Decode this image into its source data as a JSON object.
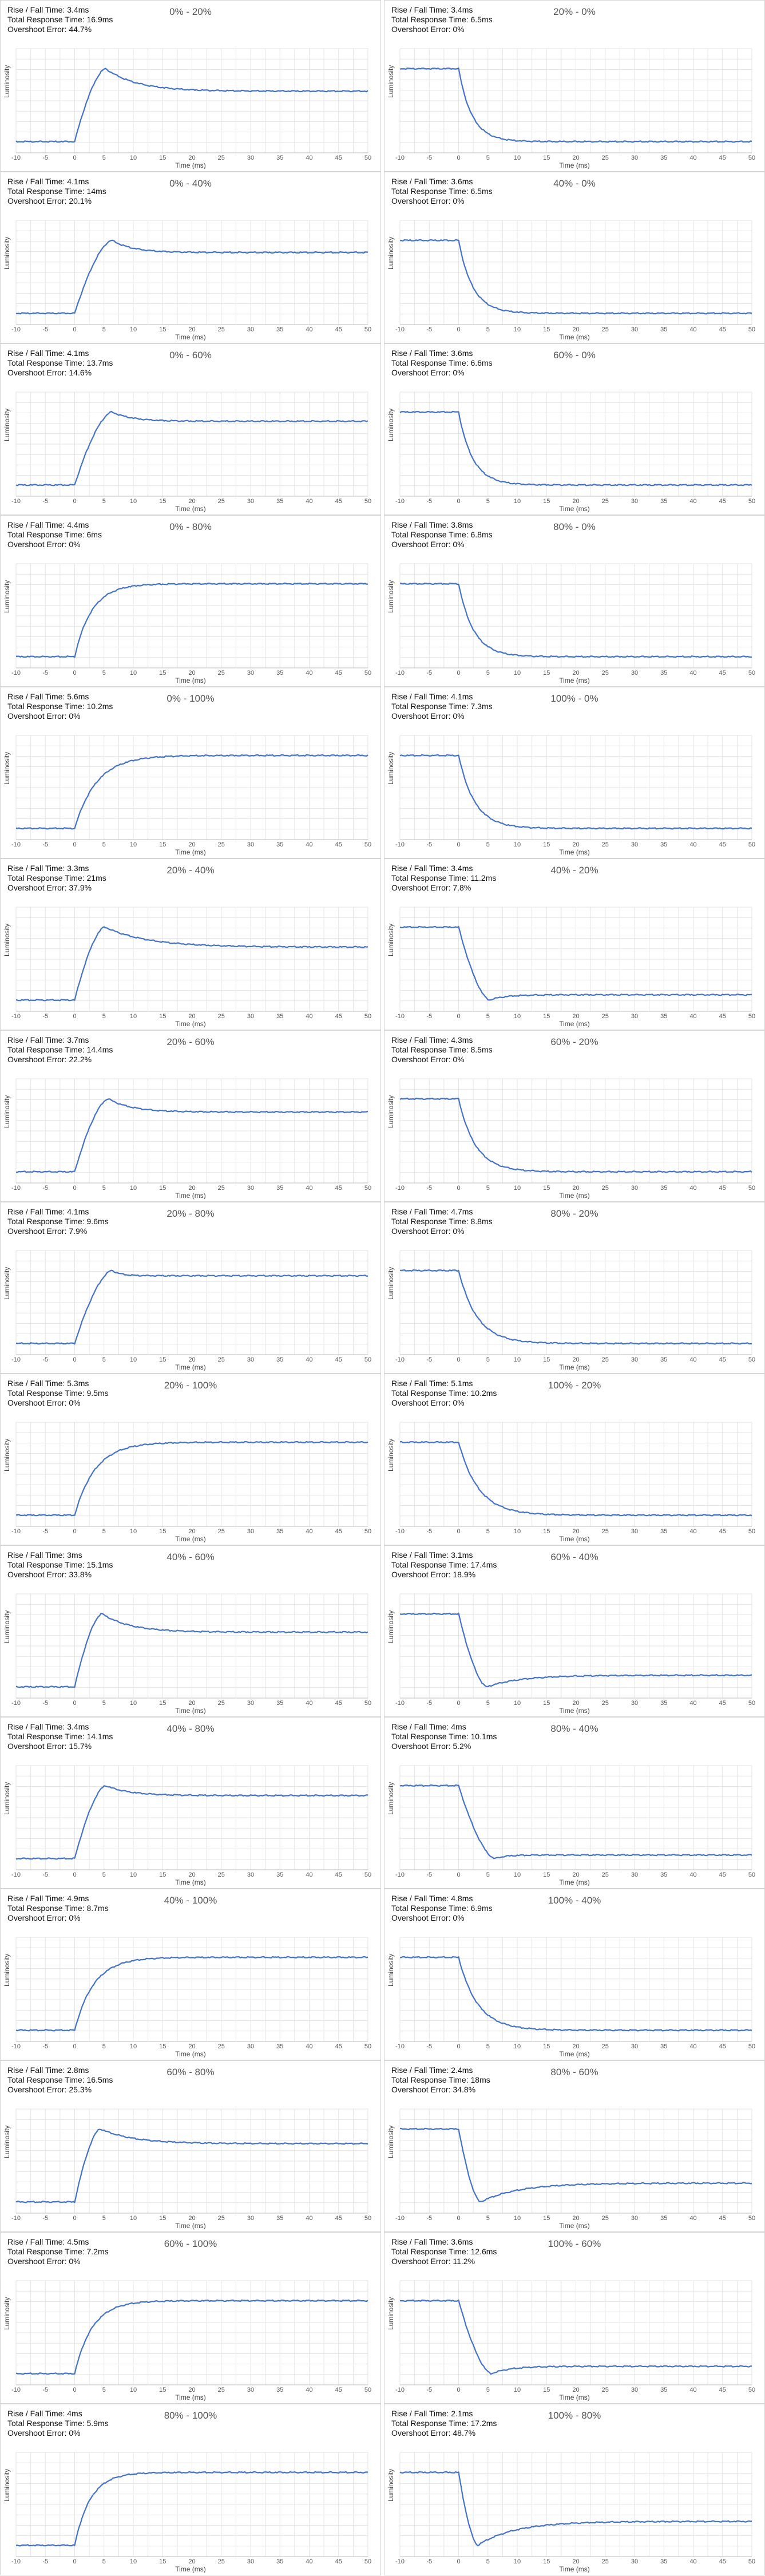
{
  "chart_data": [
    {
      "type": "line",
      "title": "0% - 20%",
      "from": 0,
      "to": 20,
      "rise_fall": "Rise / Fall Time: 3.4ms",
      "total_response": "Total Response Time: 16.9ms",
      "overshoot": "Overshoot Error: 44.7%",
      "overshoot_pct": 44.7,
      "rise_ms": 3.4,
      "settle_ms": 16.9,
      "xlabel": "Time (ms)",
      "ylabel": "Luminosity",
      "xlim": [
        -10,
        50
      ],
      "xticks": [
        -10,
        -5,
        0,
        5,
        10,
        15,
        20,
        25,
        30,
        35,
        40,
        45,
        50
      ]
    },
    {
      "type": "line",
      "title": "20% - 0%",
      "from": 20,
      "to": 0,
      "rise_fall": "Rise / Fall Time: 3.4ms",
      "total_response": "Total Response Time: 6.5ms",
      "overshoot": "Overshoot Error: 0%",
      "overshoot_pct": 0,
      "rise_ms": 3.4,
      "settle_ms": 6.5,
      "xlabel": "Time (ms)",
      "ylabel": "Luminosity",
      "xlim": [
        -10,
        50
      ],
      "xticks": [
        -10,
        -5,
        0,
        5,
        10,
        15,
        20,
        25,
        30,
        35,
        40,
        45,
        50
      ]
    },
    {
      "type": "line",
      "title": "0% - 40%",
      "from": 0,
      "to": 40,
      "rise_fall": "Rise / Fall Time: 4.1ms",
      "total_response": "Total Response Time: 14ms",
      "overshoot": "Overshoot Error: 20.1%",
      "overshoot_pct": 20.1,
      "rise_ms": 4.1,
      "settle_ms": 14,
      "xlabel": "Time (ms)",
      "ylabel": "Luminosity",
      "xlim": [
        -10,
        50
      ],
      "xticks": [
        -10,
        -5,
        0,
        5,
        10,
        15,
        20,
        25,
        30,
        35,
        40,
        45,
        50
      ]
    },
    {
      "type": "line",
      "title": "40% - 0%",
      "from": 40,
      "to": 0,
      "rise_fall": "Rise / Fall Time: 3.6ms",
      "total_response": "Total Response Time: 6.5ms",
      "overshoot": "Overshoot Error: 0%",
      "overshoot_pct": 0,
      "rise_ms": 3.6,
      "settle_ms": 6.5,
      "xlabel": "Time (ms)",
      "ylabel": "Luminosity",
      "xlim": [
        -10,
        50
      ],
      "xticks": [
        -10,
        -5,
        0,
        5,
        10,
        15,
        20,
        25,
        30,
        35,
        40,
        45,
        50
      ]
    },
    {
      "type": "line",
      "title": "0% - 60%",
      "from": 0,
      "to": 60,
      "rise_fall": "Rise / Fall Time: 4.1ms",
      "total_response": "Total Response Time: 13.7ms",
      "overshoot": "Overshoot Error: 14.6%",
      "overshoot_pct": 14.6,
      "rise_ms": 4.1,
      "settle_ms": 13.7,
      "xlabel": "Time (ms)",
      "ylabel": "Luminosity",
      "xlim": [
        -10,
        50
      ],
      "xticks": [
        -10,
        -5,
        0,
        5,
        10,
        15,
        20,
        25,
        30,
        35,
        40,
        45,
        50
      ]
    },
    {
      "type": "line",
      "title": "60% - 0%",
      "from": 60,
      "to": 0,
      "rise_fall": "Rise / Fall Time: 3.6ms",
      "total_response": "Total Response Time: 6.6ms",
      "overshoot": "Overshoot Error: 0%",
      "overshoot_pct": 0,
      "rise_ms": 3.6,
      "settle_ms": 6.6,
      "xlabel": "Time (ms)",
      "ylabel": "Luminosity",
      "xlim": [
        -10,
        50
      ],
      "xticks": [
        -10,
        -5,
        0,
        5,
        10,
        15,
        20,
        25,
        30,
        35,
        40,
        45,
        50
      ]
    },
    {
      "type": "line",
      "title": "0% - 80%",
      "from": 0,
      "to": 80,
      "rise_fall": "Rise / Fall Time: 4.4ms",
      "total_response": "Total Response Time: 6ms",
      "overshoot": "Overshoot Error: 0%",
      "overshoot_pct": 0,
      "rise_ms": 4.4,
      "settle_ms": 6,
      "xlabel": "Time (ms)",
      "ylabel": "Luminosity",
      "xlim": [
        -10,
        50
      ],
      "xticks": [
        -10,
        -5,
        0,
        5,
        10,
        15,
        20,
        25,
        30,
        35,
        40,
        45,
        50
      ]
    },
    {
      "type": "line",
      "title": "80% - 0%",
      "from": 80,
      "to": 0,
      "rise_fall": "Rise / Fall Time: 3.8ms",
      "total_response": "Total Response Time: 6.8ms",
      "overshoot": "Overshoot Error: 0%",
      "overshoot_pct": 0,
      "rise_ms": 3.8,
      "settle_ms": 6.8,
      "xlabel": "Time (ms)",
      "ylabel": "Luminosity",
      "xlim": [
        -10,
        50
      ],
      "xticks": [
        -10,
        -5,
        0,
        5,
        10,
        15,
        20,
        25,
        30,
        35,
        40,
        45,
        50
      ]
    },
    {
      "type": "line",
      "title": "0% - 100%",
      "from": 0,
      "to": 100,
      "rise_fall": "Rise / Fall Time: 5.6ms",
      "total_response": "Total Response Time: 10.2ms",
      "overshoot": "Overshoot Error: 0%",
      "overshoot_pct": 0,
      "rise_ms": 5.6,
      "settle_ms": 10.2,
      "xlabel": "Time (ms)",
      "ylabel": "Luminosity",
      "xlim": [
        -10,
        50
      ],
      "xticks": [
        -10,
        -5,
        0,
        5,
        10,
        15,
        20,
        25,
        30,
        35,
        40,
        45,
        50
      ]
    },
    {
      "type": "line",
      "title": "100% - 0%",
      "from": 100,
      "to": 0,
      "rise_fall": "Rise / Fall Time: 4.1ms",
      "total_response": "Total Response Time: 7.3ms",
      "overshoot": "Overshoot Error: 0%",
      "overshoot_pct": 0,
      "rise_ms": 4.1,
      "settle_ms": 7.3,
      "xlabel": "Time (ms)",
      "ylabel": "Luminosity",
      "xlim": [
        -10,
        50
      ],
      "xticks": [
        -10,
        -5,
        0,
        5,
        10,
        15,
        20,
        25,
        30,
        35,
        40,
        45,
        50
      ]
    },
    {
      "type": "line",
      "title": "20% - 40%",
      "from": 20,
      "to": 40,
      "rise_fall": "Rise / Fall Time: 3.3ms",
      "total_response": "Total Response Time: 21ms",
      "overshoot": "Overshoot Error: 37.9%",
      "overshoot_pct": 37.9,
      "rise_ms": 3.3,
      "settle_ms": 21,
      "xlabel": "Time (ms)",
      "ylabel": "Luminosity",
      "xlim": [
        -10,
        50
      ],
      "xticks": [
        -10,
        -5,
        0,
        5,
        10,
        15,
        20,
        25,
        30,
        35,
        40,
        45,
        50
      ]
    },
    {
      "type": "line",
      "title": "40% - 20%",
      "from": 40,
      "to": 20,
      "rise_fall": "Rise / Fall Time: 3.4ms",
      "total_response": "Total Response Time: 11.2ms",
      "overshoot": "Overshoot Error: 7.8%",
      "overshoot_pct": 7.8,
      "rise_ms": 3.4,
      "settle_ms": 11.2,
      "xlabel": "Time (ms)",
      "ylabel": "Luminosity",
      "xlim": [
        -10,
        50
      ],
      "xticks": [
        -10,
        -5,
        0,
        5,
        10,
        15,
        20,
        25,
        30,
        35,
        40,
        45,
        50
      ]
    },
    {
      "type": "line",
      "title": "20% - 60%",
      "from": 20,
      "to": 60,
      "rise_fall": "Rise / Fall Time: 3.7ms",
      "total_response": "Total Response Time: 14.4ms",
      "overshoot": "Overshoot Error: 22.2%",
      "overshoot_pct": 22.2,
      "rise_ms": 3.7,
      "settle_ms": 14.4,
      "xlabel": "Time (ms)",
      "ylabel": "Luminosity",
      "xlim": [
        -10,
        50
      ],
      "xticks": [
        -10,
        -5,
        0,
        5,
        10,
        15,
        20,
        25,
        30,
        35,
        40,
        45,
        50
      ]
    },
    {
      "type": "line",
      "title": "60% - 20%",
      "from": 60,
      "to": 20,
      "rise_fall": "Rise / Fall Time: 4.3ms",
      "total_response": "Total Response Time: 8.5ms",
      "overshoot": "Overshoot Error: 0%",
      "overshoot_pct": 0,
      "rise_ms": 4.3,
      "settle_ms": 8.5,
      "xlabel": "Time (ms)",
      "ylabel": "Luminosity",
      "xlim": [
        -10,
        50
      ],
      "xticks": [
        -10,
        -5,
        0,
        5,
        10,
        15,
        20,
        25,
        30,
        35,
        40,
        45,
        50
      ]
    },
    {
      "type": "line",
      "title": "20% - 80%",
      "from": 20,
      "to": 80,
      "rise_fall": "Rise / Fall Time: 4.1ms",
      "total_response": "Total Response Time: 9.6ms",
      "overshoot": "Overshoot Error: 7.9%",
      "overshoot_pct": 7.9,
      "rise_ms": 4.1,
      "settle_ms": 9.6,
      "xlabel": "Time (ms)",
      "ylabel": "Luminosity",
      "xlim": [
        -10,
        50
      ],
      "xticks": [
        -10,
        -5,
        0,
        5,
        10,
        15,
        20,
        25,
        30,
        35,
        40,
        45,
        50
      ]
    },
    {
      "type": "line",
      "title": "80% - 20%",
      "from": 80,
      "to": 20,
      "rise_fall": "Rise / Fall Time: 4.7ms",
      "total_response": "Total Response Time: 8.8ms",
      "overshoot": "Overshoot Error: 0%",
      "overshoot_pct": 0,
      "rise_ms": 4.7,
      "settle_ms": 8.8,
      "xlabel": "Time (ms)",
      "ylabel": "Luminosity",
      "xlim": [
        -10,
        50
      ],
      "xticks": [
        -10,
        -5,
        0,
        5,
        10,
        15,
        20,
        25,
        30,
        35,
        40,
        45,
        50
      ]
    },
    {
      "type": "line",
      "title": "20% - 100%",
      "from": 20,
      "to": 100,
      "rise_fall": "Rise / Fall Time: 5.3ms",
      "total_response": "Total Response Time: 9.5ms",
      "overshoot": "Overshoot Error: 0%",
      "overshoot_pct": 0,
      "rise_ms": 5.3,
      "settle_ms": 9.5,
      "xlabel": "Time (ms)",
      "ylabel": "Luminosity",
      "xlim": [
        -10,
        50
      ],
      "xticks": [
        -10,
        -5,
        0,
        5,
        10,
        15,
        20,
        25,
        30,
        35,
        40,
        45,
        50
      ]
    },
    {
      "type": "line",
      "title": "100% - 20%",
      "from": 100,
      "to": 20,
      "rise_fall": "Rise / Fall Time: 5.1ms",
      "total_response": "Total Response Time: 10.2ms",
      "overshoot": "Overshoot Error: 0%",
      "overshoot_pct": 0,
      "rise_ms": 5.1,
      "settle_ms": 10.2,
      "xlabel": "Time (ms)",
      "ylabel": "Luminosity",
      "xlim": [
        -10,
        50
      ],
      "xticks": [
        -10,
        -5,
        0,
        5,
        10,
        15,
        20,
        25,
        30,
        35,
        40,
        45,
        50
      ]
    },
    {
      "type": "line",
      "title": "40% - 60%",
      "from": 40,
      "to": 60,
      "rise_fall": "Rise / Fall Time: 3ms",
      "total_response": "Total Response Time: 15.1ms",
      "overshoot": "Overshoot Error: 33.8%",
      "overshoot_pct": 33.8,
      "rise_ms": 3,
      "settle_ms": 15.1,
      "xlabel": "Time (ms)",
      "ylabel": "Luminosity",
      "xlim": [
        -10,
        50
      ],
      "xticks": [
        -10,
        -5,
        0,
        5,
        10,
        15,
        20,
        25,
        30,
        35,
        40,
        45,
        50
      ]
    },
    {
      "type": "line",
      "title": "60% - 40%",
      "from": 60,
      "to": 40,
      "rise_fall": "Rise / Fall Time: 3.1ms",
      "total_response": "Total Response Time: 17.4ms",
      "overshoot": "Overshoot Error: 18.9%",
      "overshoot_pct": 18.9,
      "rise_ms": 3.1,
      "settle_ms": 17.4,
      "xlabel": "Time (ms)",
      "ylabel": "Luminosity",
      "xlim": [
        -10,
        50
      ],
      "xticks": [
        -10,
        -5,
        0,
        5,
        10,
        15,
        20,
        25,
        30,
        35,
        40,
        45,
        50
      ]
    },
    {
      "type": "line",
      "title": "40% - 80%",
      "from": 40,
      "to": 80,
      "rise_fall": "Rise / Fall Time: 3.4ms",
      "total_response": "Total Response Time: 14.1ms",
      "overshoot": "Overshoot Error: 15.7%",
      "overshoot_pct": 15.7,
      "rise_ms": 3.4,
      "settle_ms": 14.1,
      "xlabel": "Time (ms)",
      "ylabel": "Luminosity",
      "xlim": [
        -10,
        50
      ],
      "xticks": [
        -10,
        -5,
        0,
        5,
        10,
        15,
        20,
        25,
        30,
        35,
        40,
        45,
        50
      ]
    },
    {
      "type": "line",
      "title": "80% - 40%",
      "from": 80,
      "to": 40,
      "rise_fall": "Rise / Fall Time: 4ms",
      "total_response": "Total Response Time: 10.1ms",
      "overshoot": "Overshoot Error: 5.2%",
      "overshoot_pct": 5.2,
      "rise_ms": 4,
      "settle_ms": 10.1,
      "xlabel": "Time (ms)",
      "ylabel": "Luminosity",
      "xlim": [
        -10,
        50
      ],
      "xticks": [
        -10,
        -5,
        0,
        5,
        10,
        15,
        20,
        25,
        30,
        35,
        40,
        45,
        50
      ]
    },
    {
      "type": "line",
      "title": "40% - 100%",
      "from": 40,
      "to": 100,
      "rise_fall": "Rise / Fall Time: 4.9ms",
      "total_response": "Total Response Time: 8.7ms",
      "overshoot": "Overshoot Error: 0%",
      "overshoot_pct": 0,
      "rise_ms": 4.9,
      "settle_ms": 8.7,
      "xlabel": "Time (ms)",
      "ylabel": "Luminosity",
      "xlim": [
        -10,
        50
      ],
      "xticks": [
        -10,
        -5,
        0,
        5,
        10,
        15,
        20,
        25,
        30,
        35,
        40,
        45,
        50
      ]
    },
    {
      "type": "line",
      "title": "100% - 40%",
      "from": 100,
      "to": 40,
      "rise_fall": "Rise / Fall Time: 4.8ms",
      "total_response": "Total Response Time: 6.9ms",
      "overshoot": "Overshoot Error: 0%",
      "overshoot_pct": 0,
      "rise_ms": 4.8,
      "settle_ms": 6.9,
      "xlabel": "Time (ms)",
      "ylabel": "Luminosity",
      "xlim": [
        -10,
        50
      ],
      "xticks": [
        -10,
        -5,
        0,
        5,
        10,
        15,
        20,
        25,
        30,
        35,
        40,
        45,
        50
      ]
    },
    {
      "type": "line",
      "title": "60% - 80%",
      "from": 60,
      "to": 80,
      "rise_fall": "Rise / Fall Time: 2.8ms",
      "total_response": "Total Response Time: 16.5ms",
      "overshoot": "Overshoot Error: 25.3%",
      "overshoot_pct": 25.3,
      "rise_ms": 2.8,
      "settle_ms": 16.5,
      "xlabel": "Time (ms)",
      "ylabel": "Luminosity",
      "xlim": [
        -10,
        50
      ],
      "xticks": [
        -10,
        -5,
        0,
        5,
        10,
        15,
        20,
        25,
        30,
        35,
        40,
        45,
        50
      ]
    },
    {
      "type": "line",
      "title": "80% - 60%",
      "from": 80,
      "to": 60,
      "rise_fall": "Rise / Fall Time: 2.4ms",
      "total_response": "Total Response Time: 18ms",
      "overshoot": "Overshoot Error: 34.8%",
      "overshoot_pct": 34.8,
      "rise_ms": 2.4,
      "settle_ms": 18,
      "xlabel": "Time (ms)",
      "ylabel": "Luminosity",
      "xlim": [
        -10,
        50
      ],
      "xticks": [
        -10,
        -5,
        0,
        5,
        10,
        15,
        20,
        25,
        30,
        35,
        40,
        45,
        50
      ]
    },
    {
      "type": "line",
      "title": "60% - 100%",
      "from": 60,
      "to": 100,
      "rise_fall": "Rise / Fall Time: 4.5ms",
      "total_response": "Total Response Time: 7.2ms",
      "overshoot": "Overshoot Error: 0%",
      "overshoot_pct": 0,
      "rise_ms": 4.5,
      "settle_ms": 7.2,
      "xlabel": "Time (ms)",
      "ylabel": "Luminosity",
      "xlim": [
        -10,
        50
      ],
      "xticks": [
        -10,
        -5,
        0,
        5,
        10,
        15,
        20,
        25,
        30,
        35,
        40,
        45,
        50
      ]
    },
    {
      "type": "line",
      "title": "100% - 60%",
      "from": 100,
      "to": 60,
      "rise_fall": "Rise / Fall Time: 3.6ms",
      "total_response": "Total Response Time: 12.6ms",
      "overshoot": "Overshoot Error: 11.2%",
      "overshoot_pct": 11.2,
      "rise_ms": 3.6,
      "settle_ms": 12.6,
      "xlabel": "Time (ms)",
      "ylabel": "Luminosity",
      "xlim": [
        -10,
        50
      ],
      "xticks": [
        -10,
        -5,
        0,
        5,
        10,
        15,
        20,
        25,
        30,
        35,
        40,
        45,
        50
      ]
    },
    {
      "type": "line",
      "title": "80% - 100%",
      "from": 80,
      "to": 100,
      "rise_fall": "Rise / Fall Time: 4ms",
      "total_response": "Total Response Time: 5.9ms",
      "overshoot": "Overshoot Error: 0%",
      "overshoot_pct": 0,
      "rise_ms": 4,
      "settle_ms": 5.9,
      "xlabel": "Time (ms)",
      "ylabel": "Luminosity",
      "xlim": [
        -10,
        50
      ],
      "xticks": [
        -10,
        -5,
        0,
        5,
        10,
        15,
        20,
        25,
        30,
        35,
        40,
        45,
        50
      ]
    },
    {
      "type": "line",
      "title": "100% - 80%",
      "from": 100,
      "to": 80,
      "rise_fall": "Rise / Fall Time: 2.1ms",
      "total_response": "Total Response Time: 17.2ms",
      "overshoot": "Overshoot Error: 48.7%",
      "overshoot_pct": 48.7,
      "rise_ms": 2.1,
      "settle_ms": 17.2,
      "xlabel": "Time (ms)",
      "ylabel": "Luminosity",
      "xlim": [
        -10,
        50
      ],
      "xticks": [
        -10,
        -5,
        0,
        5,
        10,
        15,
        20,
        25,
        30,
        35,
        40,
        45,
        50
      ]
    }
  ],
  "colors": {
    "line": "#4472c4",
    "grid": "#e3e3e3",
    "axis": "#bdbdbd",
    "panel_border": "#d4d4d4"
  }
}
